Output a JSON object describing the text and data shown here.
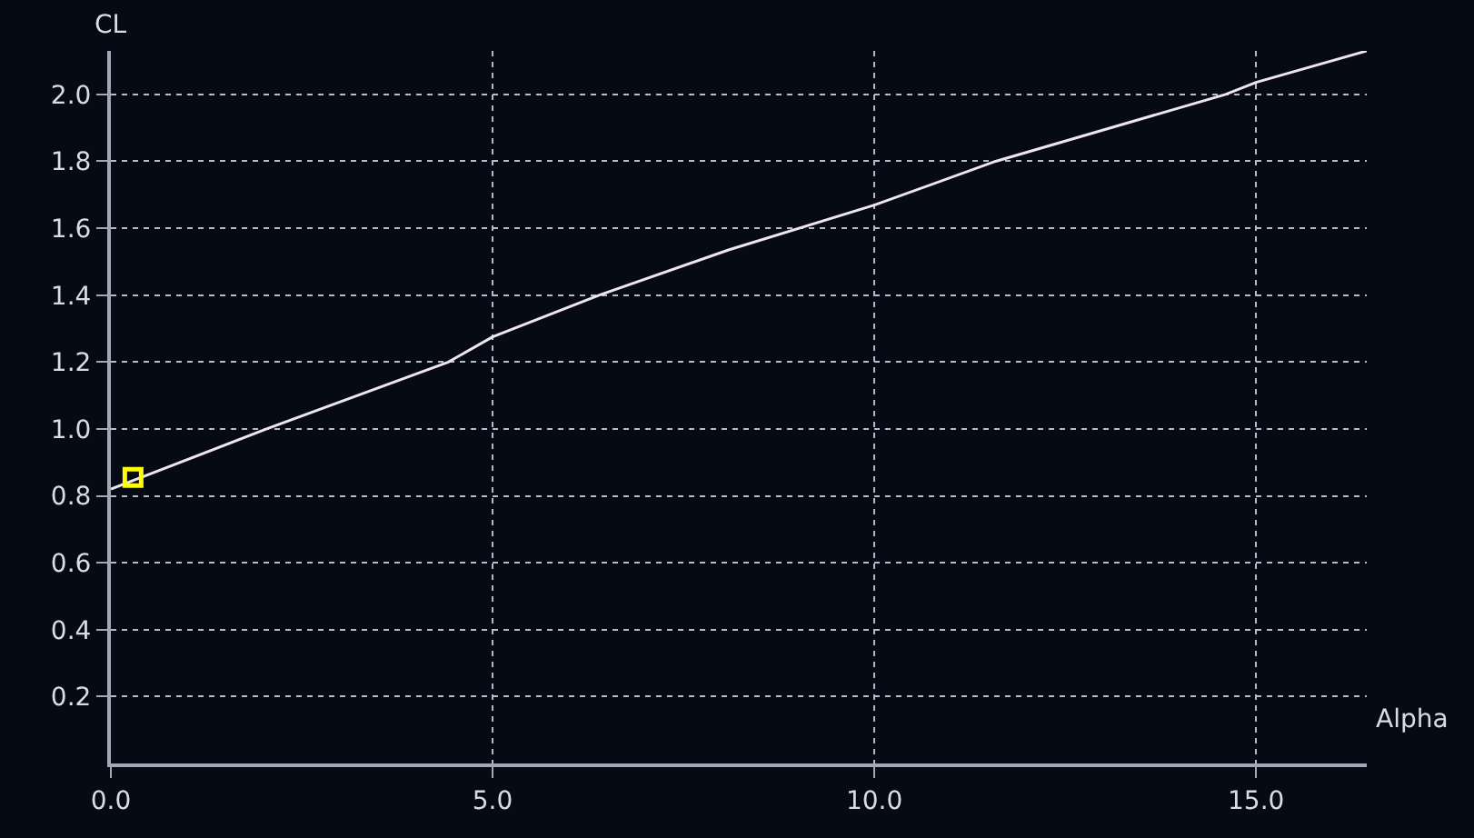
{
  "chart_data": {
    "type": "line",
    "xlabel": "Alpha",
    "ylabel": "CL",
    "xlim": [
      0,
      16.45
    ],
    "ylim": [
      0,
      2.13
    ],
    "xticks": [
      {
        "value": 0,
        "label": "0.0"
      },
      {
        "value": 5,
        "label": "5.0"
      },
      {
        "value": 10,
        "label": "10.0"
      },
      {
        "value": 15,
        "label": "15.0"
      }
    ],
    "yticks": [
      {
        "value": 0.2,
        "label": "0.2"
      },
      {
        "value": 0.4,
        "label": "0.4"
      },
      {
        "value": 0.6,
        "label": "0.6"
      },
      {
        "value": 0.8,
        "label": "0.8"
      },
      {
        "value": 1.0,
        "label": "1.0"
      },
      {
        "value": 1.2,
        "label": "1.2"
      },
      {
        "value": 1.4,
        "label": "1.4"
      },
      {
        "value": 1.6,
        "label": "1.6"
      },
      {
        "value": 1.8,
        "label": "1.8"
      },
      {
        "value": 2.0,
        "label": "2.0"
      }
    ],
    "grid": true,
    "series": [
      {
        "color": "#f0e4f0",
        "line_style": "solid",
        "marker": "none",
        "x": [
          0,
          2.04,
          4.42,
          5.0,
          6.4,
          8.09,
          10.0,
          11.59,
          14.6,
          15.0,
          16.45
        ],
        "values": [
          0.82,
          1.0,
          1.2,
          1.275,
          1.4,
          1.535,
          1.669,
          1.8,
          2.0,
          2.036,
          2.13
        ]
      },
      {
        "type": "scatter",
        "color": "#ffff00",
        "marker": "square",
        "x": [
          0.29
        ],
        "values": [
          0.855
        ]
      }
    ]
  }
}
